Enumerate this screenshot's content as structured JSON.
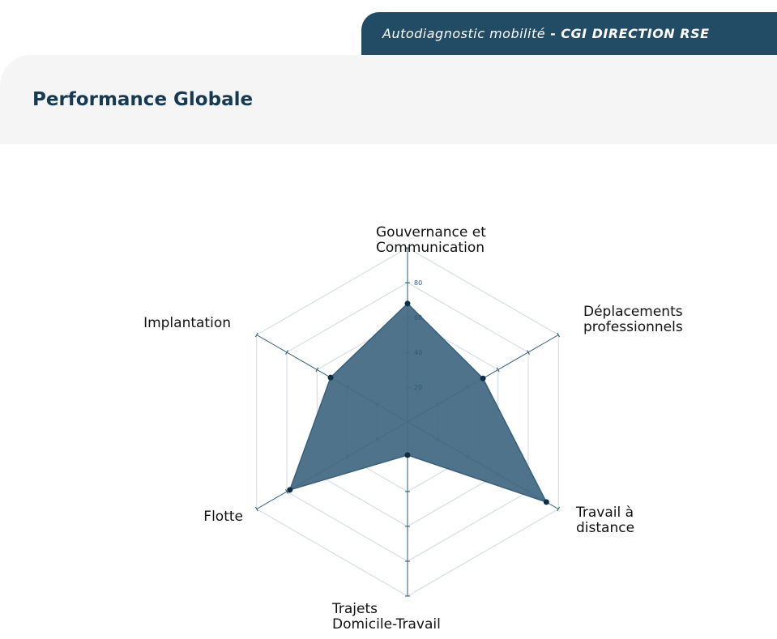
{
  "header": {
    "subtitle": "Autodiagnostic mobilité",
    "separator": "-",
    "organization": "CGI DIRECTION RSE"
  },
  "page": {
    "title": "Performance Globale"
  },
  "colors": {
    "header_tab": "#224b66",
    "title": "#163a52",
    "fill": "#466b84",
    "axis": "#2b5a78",
    "grid": "#cfd9e0"
  },
  "chart_data": {
    "type": "radar",
    "axes": [
      "Gouvernance et\nCommunication",
      "Déplacements\nprofessionnels",
      "Travail à\ndistance",
      "Trajets\nDomicile-Travail",
      "Flotte",
      "Implantation"
    ],
    "values": [
      68,
      50,
      92,
      19,
      78,
      51
    ],
    "range": [
      0,
      100
    ],
    "ticks": [
      20,
      40,
      60,
      80
    ],
    "tick_labels": [
      "20",
      "40",
      "60",
      "80"
    ],
    "grid": true
  }
}
